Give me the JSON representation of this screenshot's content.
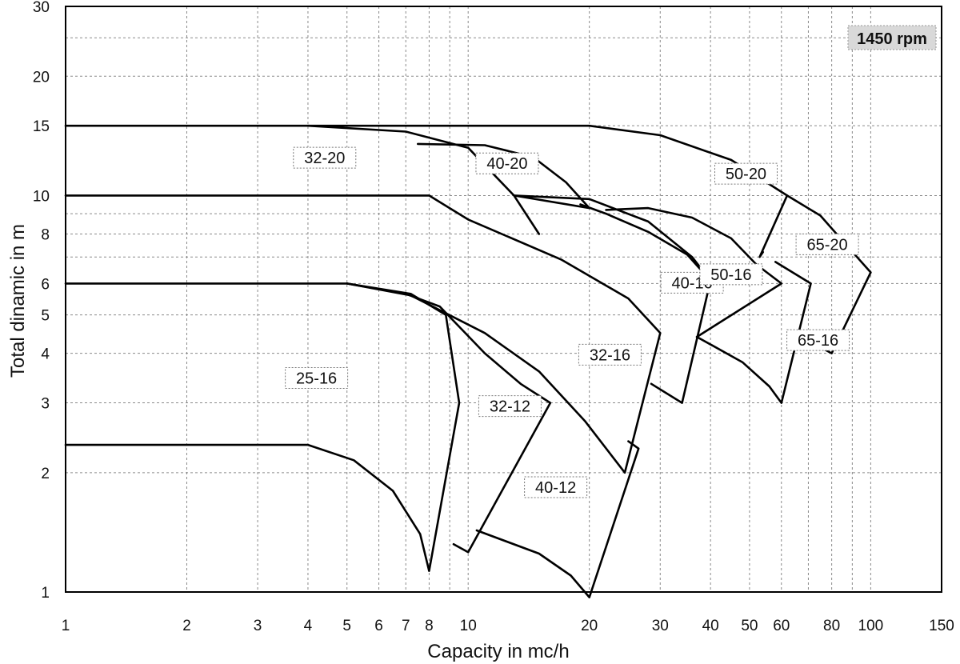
{
  "chart_data": {
    "type": "line",
    "xscale": "log",
    "yscale": "log",
    "xlim": [
      1,
      150
    ],
    "ylim": [
      1,
      30
    ],
    "grid": true,
    "xlabel": "Capacity in mc/h",
    "ylabel": "Total dinamic in m",
    "annotation": "1450 rpm",
    "x_ticks": [
      {
        "value": 1,
        "label": "1"
      },
      {
        "value": 2,
        "label": "2"
      },
      {
        "value": 3,
        "label": "3"
      },
      {
        "value": 4,
        "label": "4"
      },
      {
        "value": 5,
        "label": "5"
      },
      {
        "value": 6,
        "label": "6"
      },
      {
        "value": 7,
        "label": "7"
      },
      {
        "value": 8,
        "label": "8"
      },
      {
        "value": 10,
        "label": "10"
      },
      {
        "value": 20,
        "label": "20"
      },
      {
        "value": 30,
        "label": "30"
      },
      {
        "value": 40,
        "label": "40"
      },
      {
        "value": 50,
        "label": "50"
      },
      {
        "value": 60,
        "label": "60"
      },
      {
        "value": 80,
        "label": "80"
      },
      {
        "value": 100,
        "label": "100"
      },
      {
        "value": 150,
        "label": "150"
      }
    ],
    "y_ticks": [
      {
        "value": 1,
        "label": "1"
      },
      {
        "value": 2,
        "label": "2"
      },
      {
        "value": 3,
        "label": "3"
      },
      {
        "value": 4,
        "label": "4"
      },
      {
        "value": 5,
        "label": "5"
      },
      {
        "value": 6,
        "label": "6"
      },
      {
        "value": 8,
        "label": "8"
      },
      {
        "value": 10,
        "label": "10"
      },
      {
        "value": 15,
        "label": "15"
      },
      {
        "value": 20,
        "label": "20"
      },
      {
        "value": 30,
        "label": "30"
      }
    ],
    "x_grid": [
      1,
      2,
      3,
      4,
      5,
      6,
      7,
      8,
      9,
      10,
      20,
      30,
      40,
      50,
      60,
      70,
      80,
      90,
      100,
      150
    ],
    "y_grid": [
      1,
      2,
      3,
      4,
      5,
      6,
      7,
      8,
      9,
      10,
      15,
      20,
      25,
      30
    ],
    "series": [
      {
        "name": "25-16",
        "label_at": [
          4.2,
          3.45
        ],
        "points": [
          [
            1,
            2.35
          ],
          [
            4,
            2.35
          ],
          [
            5.2,
            2.15
          ],
          [
            6.5,
            1.8
          ],
          [
            7.6,
            1.4
          ],
          [
            8,
            1.13
          ],
          [
            9.5,
            3.0
          ],
          [
            8.8,
            5.0
          ],
          [
            7.2,
            5.65
          ],
          [
            5,
            6.0
          ]
        ]
      },
      {
        "name": "32-12",
        "label_at": [
          12.7,
          2.93
        ],
        "points": [
          [
            9.2,
            1.32
          ],
          [
            10,
            1.26
          ],
          [
            16,
            3.0
          ],
          [
            13.5,
            3.35
          ],
          [
            11,
            4.0
          ],
          [
            8.5,
            5.25
          ],
          [
            7,
            5.65
          ],
          [
            5,
            6.0
          ]
        ]
      },
      {
        "name": "32-16",
        "label_at": [
          22.5,
          3.95
        ],
        "points": [
          [
            1,
            6.0
          ],
          [
            5,
            6.0
          ],
          [
            7.2,
            5.6
          ],
          [
            11,
            4.5
          ],
          [
            15,
            3.6
          ],
          [
            19.5,
            2.7
          ],
          [
            24.5,
            2.0
          ],
          [
            30,
            4.5
          ],
          [
            25,
            5.5
          ],
          [
            17,
            6.9
          ],
          [
            10,
            8.7
          ],
          [
            8,
            10.0
          ],
          [
            1,
            10.0
          ]
        ]
      },
      {
        "name": "40-12",
        "label_at": [
          16.5,
          1.83
        ],
        "points": [
          [
            10.5,
            1.43
          ],
          [
            15,
            1.25
          ],
          [
            18,
            1.1
          ],
          [
            20,
            0.97
          ],
          [
            26.5,
            2.3
          ],
          [
            25,
            2.4
          ]
        ]
      },
      {
        "name": "40-16",
        "label_at": [
          36,
          6.0
        ],
        "points": [
          [
            28.5,
            3.35
          ],
          [
            34,
            3.0
          ],
          [
            40,
            6.1
          ],
          [
            35,
            7.1
          ],
          [
            28,
            8.1
          ],
          [
            22,
            9.0
          ],
          [
            19,
            9.5
          ]
        ]
      },
      {
        "name": "32-20",
        "label_at": [
          4.4,
          12.4
        ],
        "points": [
          [
            4,
            15.0
          ],
          [
            7,
            14.5
          ],
          [
            10,
            13.2
          ],
          [
            13,
            10.0
          ],
          [
            15,
            8.0
          ]
        ]
      },
      {
        "name": "40-20",
        "label_at": [
          12.5,
          12.0
        ],
        "points": [
          [
            7.5,
            13.5
          ],
          [
            11,
            13.4
          ],
          [
            14.5,
            12.5
          ],
          [
            17.5,
            10.8
          ],
          [
            20,
            9.3
          ],
          [
            13,
            10.0
          ],
          [
            20,
            9.8
          ],
          [
            28,
            8.6
          ],
          [
            36,
            7.0
          ],
          [
            40,
            6.1
          ]
        ]
      },
      {
        "name": "50-16",
        "label_at": [
          45,
          6.3
        ],
        "points": [
          [
            37,
            4.4
          ],
          [
            60,
            6.0
          ],
          [
            52,
            6.7
          ],
          [
            45,
            7.8
          ],
          [
            36,
            8.8
          ],
          [
            28,
            9.3
          ],
          [
            22,
            9.2
          ]
        ]
      },
      {
        "name": "50-20",
        "label_at": [
          49,
          11.3
        ],
        "points": [
          [
            1,
            15.0
          ],
          [
            20,
            15.0
          ],
          [
            30,
            14.2
          ],
          [
            45,
            12.3
          ],
          [
            62,
            10.0
          ],
          [
            53,
            7.0
          ],
          [
            54,
            7.2
          ]
        ]
      },
      {
        "name": "65-20",
        "label_at": [
          78,
          7.5
        ],
        "points": [
          [
            62,
            10.0
          ],
          [
            75,
            8.9
          ],
          [
            88,
            7.4
          ],
          [
            100,
            6.4
          ],
          [
            80,
            4.0
          ],
          [
            70,
            4.3
          ]
        ]
      },
      {
        "name": "65-16",
        "label_at": [
          74,
          4.3
        ],
        "points": [
          [
            37,
            4.4
          ],
          [
            48,
            3.8
          ],
          [
            56,
            3.3
          ],
          [
            60,
            3.0
          ],
          [
            71,
            6.0
          ],
          [
            58,
            6.8
          ]
        ]
      }
    ]
  }
}
